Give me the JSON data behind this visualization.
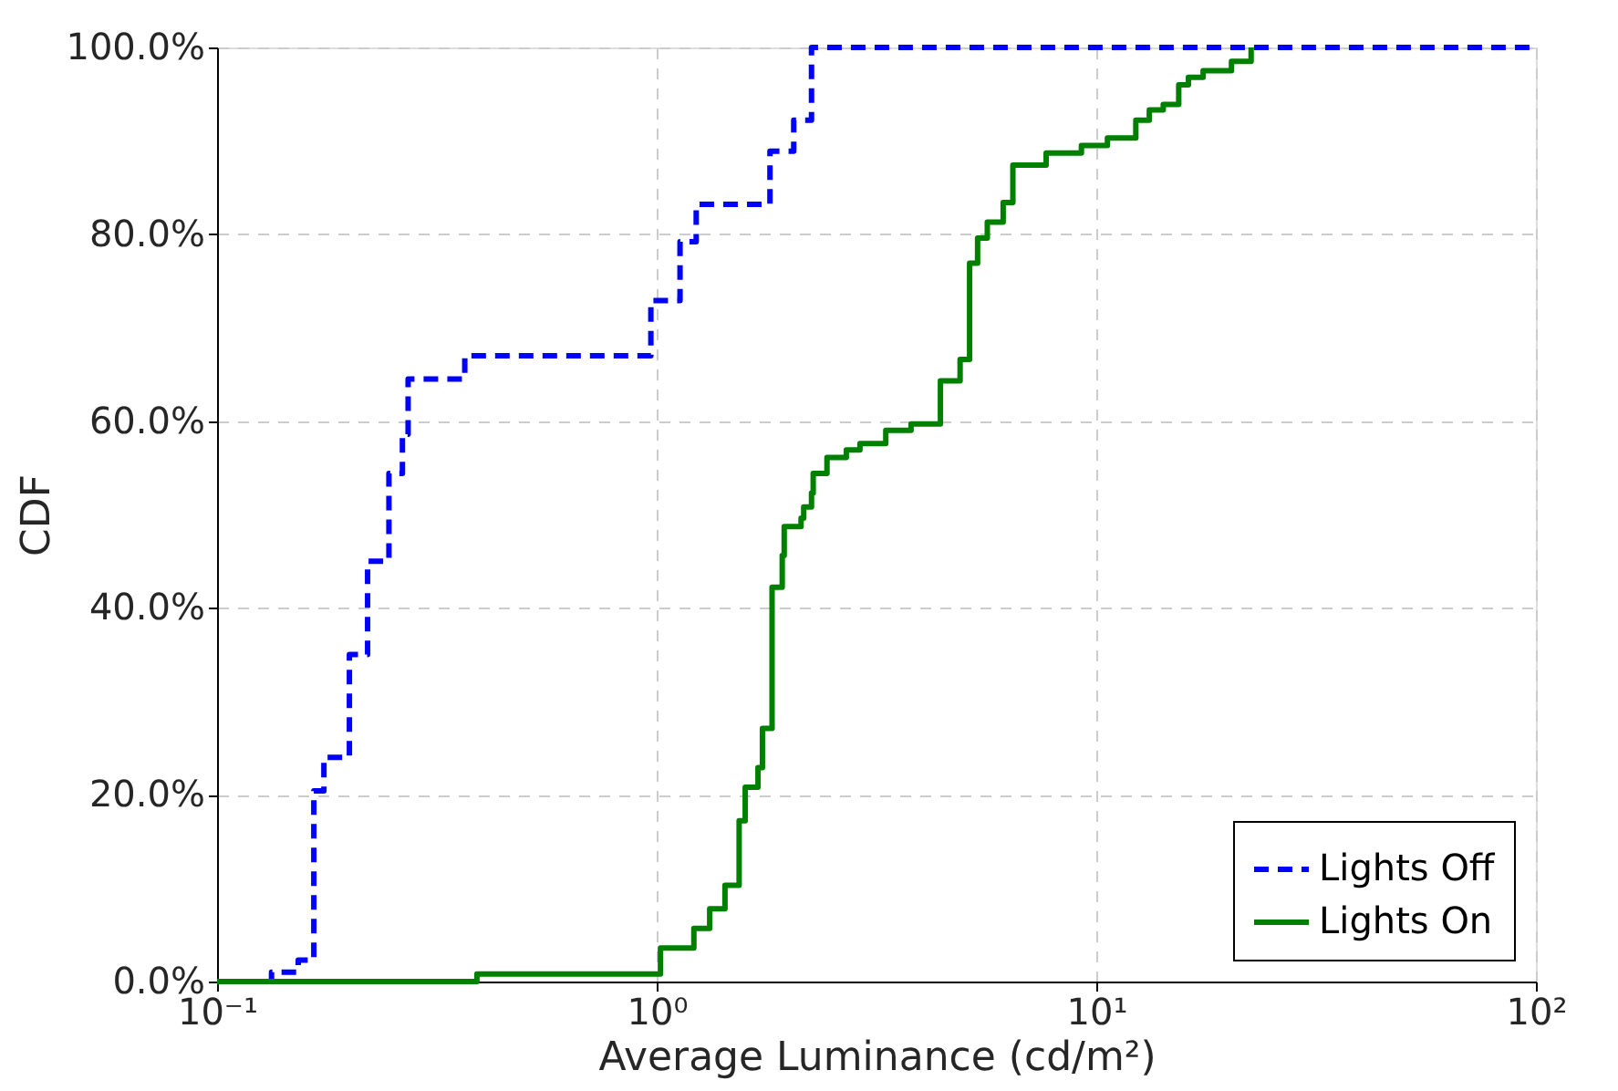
{
  "chart_data": {
    "type": "step",
    "xlabel": "Average Luminance (cd/m²)",
    "ylabel": "CDF",
    "log": "x",
    "grid": true,
    "legend": "bottom right",
    "xlim": [
      0.1,
      100
    ],
    "ylim": [
      0,
      100
    ],
    "xticks": [
      {
        "value": 0.1,
        "label": "10⁻¹"
      },
      {
        "value": 1,
        "label": "10⁰"
      },
      {
        "value": 10,
        "label": "10¹"
      },
      {
        "value": 100,
        "label": "10²"
      }
    ],
    "yticks": [
      {
        "value": 0,
        "label": "0.0%"
      },
      {
        "value": 20,
        "label": "20.0%"
      },
      {
        "value": 40,
        "label": "40.0%"
      },
      {
        "value": 60,
        "label": "60.0%"
      },
      {
        "value": 80,
        "label": "80.0%"
      },
      {
        "value": 100,
        "label": "100.0%"
      }
    ],
    "series": [
      {
        "name": "Lights Off",
        "color": "#0000ff",
        "line_style": "dashed",
        "x": [
          0.13,
          0.133,
          0.153,
          0.166,
          0.175,
          0.2,
          0.22,
          0.246,
          0.264,
          0.272,
          0.366,
          0.97,
          1.13,
          1.23,
          1.81,
          2.05,
          2.25,
          100
        ],
        "values": [
          0,
          1,
          2.3,
          20.4,
          24,
          35,
          45,
          54.4,
          58.6,
          64.5,
          67,
          72.9,
          79.2,
          83.2,
          88.9,
          92.2,
          100,
          100
        ]
      },
      {
        "name": "Lights On",
        "color": "#008000",
        "line_style": "solid",
        "x": [
          0.1,
          0.39,
          1.02,
          1.215,
          1.32,
          1.43,
          1.54,
          1.59,
          1.7,
          1.74,
          1.83,
          1.93,
          1.95,
          2.13,
          2.16,
          2.25,
          2.27,
          2.44,
          2.7,
          2.9,
          3.32,
          3.79,
          4.42,
          4.9,
          5.15,
          5.37,
          5.65,
          6.14,
          6.46,
          7.69,
          9.25,
          10.6,
          12.3,
          13.2,
          14.2,
          15.4,
          16.2,
          17.5,
          20.3,
          22.5
        ],
        "values": [
          0,
          0.8,
          3.6,
          5.7,
          7.8,
          10.3,
          17.2,
          20.8,
          22.9,
          27.1,
          42.2,
          45.6,
          48.7,
          49.6,
          50.8,
          52.3,
          54.4,
          56.1,
          56.9,
          57.6,
          59,
          59.7,
          64.3,
          66.6,
          76.9,
          79.6,
          81.3,
          83.4,
          87.4,
          88.7,
          89.5,
          90.3,
          92.2,
          93.3,
          93.9,
          96,
          96.8,
          97.5,
          98.5,
          100
        ]
      }
    ]
  }
}
